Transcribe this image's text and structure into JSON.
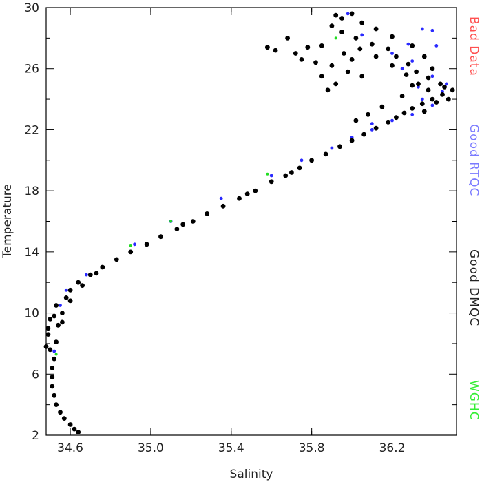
{
  "chart_data": {
    "type": "scatter",
    "title": "",
    "xlabel": "Salinity",
    "ylabel": "Temperature",
    "xlim": [
      34.48,
      36.52
    ],
    "ylim": [
      2,
      30
    ],
    "xticks": [
      "34.6",
      "35.0",
      "35.4",
      "35.8",
      "36.2"
    ],
    "xtick_values": [
      34.6,
      35.0,
      35.4,
      35.8,
      36.2
    ],
    "yticks": [
      "2",
      "6",
      "10",
      "14",
      "18",
      "22",
      "26",
      "30"
    ],
    "ytick_values": [
      2,
      6,
      10,
      14,
      18,
      22,
      26,
      30
    ],
    "grid": false,
    "legend_position": "right-side, vertical",
    "series": [
      {
        "name": "Bad Data",
        "color": "#ff5050",
        "points": []
      },
      {
        "name": "Good RTQC",
        "color": "#2a2aff",
        "points": [
          [
            34.52,
            7.5
          ],
          [
            34.55,
            10.5
          ],
          [
            34.58,
            11.5
          ],
          [
            34.68,
            12.5
          ],
          [
            34.92,
            14.5
          ],
          [
            35.1,
            16.0
          ],
          [
            35.35,
            17.5
          ],
          [
            35.6,
            19.0
          ],
          [
            35.75,
            20.0
          ],
          [
            35.9,
            20.8
          ],
          [
            36.0,
            21.5
          ],
          [
            36.1,
            22.0
          ],
          [
            36.2,
            22.6
          ],
          [
            36.3,
            23.0
          ],
          [
            36.35,
            24.0
          ],
          [
            36.45,
            24.5
          ],
          [
            36.4,
            25.5
          ],
          [
            36.3,
            26.5
          ],
          [
            36.28,
            27.6
          ],
          [
            36.4,
            28.5
          ],
          [
            36.42,
            27.5
          ],
          [
            35.98,
            29.6
          ],
          [
            36.05,
            28.2
          ],
          [
            36.25,
            26.0
          ],
          [
            36.2,
            27.0
          ],
          [
            36.4,
            23.6
          ],
          [
            36.47,
            25.0
          ],
          [
            36.35,
            28.6
          ],
          [
            36.33,
            24.8
          ],
          [
            36.1,
            22.4
          ]
        ]
      },
      {
        "name": "Good DMQC",
        "color": "#000000",
        "points": [
          [
            34.64,
            2.2
          ],
          [
            34.62,
            2.4
          ],
          [
            34.6,
            2.7
          ],
          [
            34.57,
            3.1
          ],
          [
            34.55,
            3.5
          ],
          [
            34.53,
            4.0
          ],
          [
            34.52,
            4.6
          ],
          [
            34.51,
            5.2
          ],
          [
            34.51,
            5.8
          ],
          [
            34.51,
            6.4
          ],
          [
            34.52,
            7.0
          ],
          [
            34.5,
            7.6
          ],
          [
            34.53,
            8.1
          ],
          [
            34.49,
            8.6
          ],
          [
            34.54,
            9.2
          ],
          [
            34.5,
            9.6
          ],
          [
            34.56,
            10.0
          ],
          [
            34.53,
            10.5
          ],
          [
            34.58,
            11.0
          ],
          [
            34.6,
            11.5
          ],
          [
            34.64,
            12.0
          ],
          [
            34.7,
            12.5
          ],
          [
            34.76,
            13.0
          ],
          [
            34.83,
            13.5
          ],
          [
            34.9,
            14.0
          ],
          [
            34.98,
            14.5
          ],
          [
            35.05,
            15.0
          ],
          [
            35.13,
            15.5
          ],
          [
            35.21,
            16.0
          ],
          [
            35.28,
            16.5
          ],
          [
            35.36,
            17.0
          ],
          [
            35.44,
            17.5
          ],
          [
            35.52,
            18.0
          ],
          [
            35.6,
            18.6
          ],
          [
            35.67,
            19.0
          ],
          [
            35.74,
            19.5
          ],
          [
            35.8,
            20.0
          ],
          [
            35.87,
            20.4
          ],
          [
            35.94,
            20.9
          ],
          [
            36.0,
            21.3
          ],
          [
            36.06,
            21.7
          ],
          [
            36.12,
            22.1
          ],
          [
            36.18,
            22.5
          ],
          [
            36.22,
            22.8
          ],
          [
            36.26,
            23.1
          ],
          [
            36.3,
            23.4
          ],
          [
            36.35,
            23.7
          ],
          [
            36.4,
            24.0
          ],
          [
            36.45,
            24.3
          ],
          [
            36.48,
            24.0
          ],
          [
            36.5,
            24.6
          ],
          [
            36.44,
            25.0
          ],
          [
            36.38,
            25.4
          ],
          [
            36.32,
            25.8
          ],
          [
            36.28,
            26.3
          ],
          [
            36.22,
            26.8
          ],
          [
            36.18,
            27.3
          ],
          [
            36.1,
            27.6
          ],
          [
            36.02,
            28.0
          ],
          [
            35.95,
            28.4
          ],
          [
            35.9,
            28.8
          ],
          [
            35.95,
            29.3
          ],
          [
            36.0,
            29.6
          ],
          [
            35.92,
            29.5
          ],
          [
            36.05,
            29.0
          ],
          [
            36.12,
            28.6
          ],
          [
            36.2,
            28.1
          ],
          [
            36.3,
            27.5
          ],
          [
            36.36,
            26.8
          ],
          [
            36.4,
            26.0
          ],
          [
            35.85,
            27.5
          ],
          [
            35.78,
            27.4
          ],
          [
            35.72,
            27.0
          ],
          [
            35.75,
            26.6
          ],
          [
            35.82,
            26.4
          ],
          [
            35.9,
            26.2
          ],
          [
            35.98,
            25.8
          ],
          [
            36.05,
            25.5
          ],
          [
            35.92,
            25.0
          ],
          [
            35.85,
            25.5
          ],
          [
            35.88,
            24.6
          ],
          [
            35.96,
            27.0
          ],
          [
            36.04,
            27.3
          ],
          [
            36.12,
            26.8
          ],
          [
            36.2,
            26.2
          ],
          [
            36.27,
            25.6
          ],
          [
            36.33,
            25.0
          ],
          [
            36.38,
            24.6
          ],
          [
            36.42,
            23.8
          ],
          [
            36.46,
            24.8
          ],
          [
            35.68,
            28.0
          ],
          [
            35.58,
            27.4
          ],
          [
            35.62,
            27.2
          ],
          [
            36.15,
            23.5
          ],
          [
            36.08,
            23.0
          ],
          [
            36.02,
            22.6
          ],
          [
            36.25,
            24.2
          ],
          [
            36.3,
            24.9
          ],
          [
            36.36,
            23.2
          ],
          [
            36.0,
            26.6
          ],
          [
            34.48,
            7.8
          ],
          [
            34.49,
            9.0
          ],
          [
            34.52,
            9.8
          ],
          [
            34.56,
            9.4
          ],
          [
            34.6,
            10.8
          ],
          [
            34.66,
            11.8
          ],
          [
            34.73,
            12.6
          ],
          [
            35.16,
            15.8
          ],
          [
            35.48,
            17.8
          ],
          [
            35.7,
            19.2
          ]
        ]
      },
      {
        "name": "WGHC",
        "color": "#22dd22",
        "points": [
          [
            35.58,
            19.1
          ],
          [
            35.1,
            16.0
          ],
          [
            34.9,
            14.4
          ],
          [
            35.92,
            28.0
          ],
          [
            34.53,
            7.3
          ]
        ]
      }
    ]
  }
}
